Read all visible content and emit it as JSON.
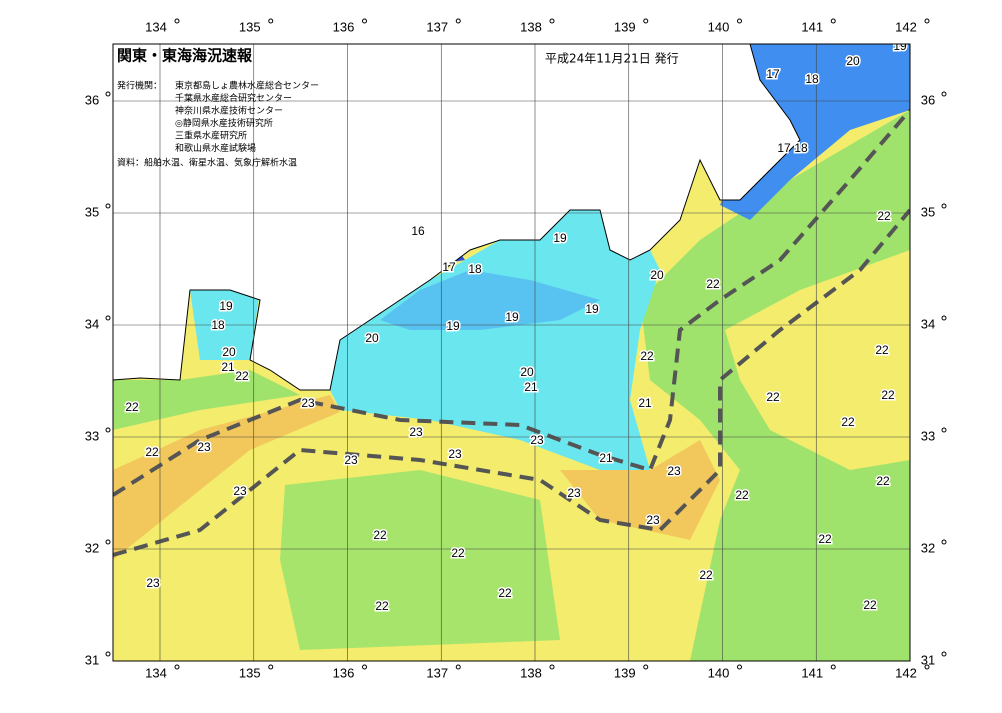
{
  "header": {
    "title": "関東・東海海況速報",
    "date": "平成24年11月21日 発行",
    "issuer_label": "発行機関：",
    "issuers": [
      "東京都島しょ農林水産総合センター",
      "千葉県水産総合研究センター",
      "神奈川県水産技術センター",
      "◎静岡県水産技術研究所",
      "三重県水産研究所",
      "和歌山県水産試験場"
    ],
    "source": "資料：船舶水温、衛星水温、気象庁解析水温"
  },
  "map": {
    "longitudes": [
      134,
      135,
      136,
      137,
      138,
      139,
      140,
      141,
      142
    ],
    "latitudes": [
      36,
      35,
      34,
      33,
      32,
      31
    ],
    "contour_labels": [
      "19",
      "20",
      "17",
      "18",
      "17",
      "18",
      "16",
      "17",
      "18",
      "19",
      "20",
      "22",
      "22",
      "19",
      "18",
      "19",
      "19",
      "19",
      "20",
      "22",
      "22",
      "20",
      "21",
      "22",
      "20",
      "21",
      "22",
      "22",
      "23",
      "22",
      "21",
      "23",
      "23",
      "22",
      "23",
      "22",
      "23",
      "23",
      "21",
      "23",
      "22",
      "23",
      "23",
      "22",
      "23",
      "22",
      "22",
      "22",
      "22",
      "23",
      "22",
      "22",
      "22"
    ]
  }
}
